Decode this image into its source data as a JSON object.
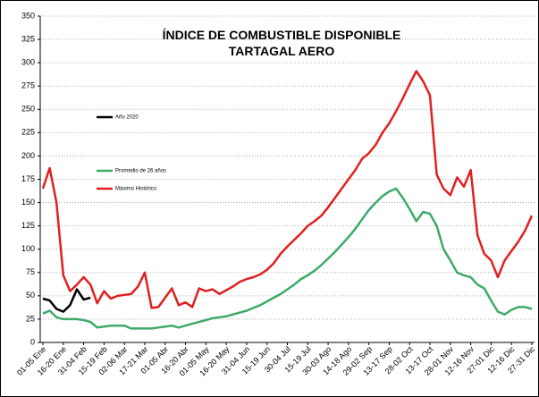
{
  "chart_data": {
    "type": "line",
    "title": "ÍNDICE DE COMBUSTIBLE DISPONIBLE",
    "subtitle": "TARTAGAL AERO",
    "categories": [
      "01-05 Ene",
      null,
      null,
      "16-20 Ene",
      null,
      null,
      "31-04 Feb",
      null,
      null,
      "15-19 Feb",
      null,
      null,
      "02-06 Mar",
      null,
      null,
      "17-21 Mar",
      null,
      null,
      "01-05 Abr",
      null,
      null,
      "16-20 Abr",
      null,
      null,
      "01-05 May",
      null,
      null,
      "16-20 May",
      null,
      null,
      "31-04 Jun",
      null,
      null,
      "15-19 Jun",
      null,
      null,
      "30-04 Jul",
      null,
      null,
      "15-19 Jul",
      null,
      null,
      "30-03 Ago",
      null,
      null,
      "14-18 Ago",
      null,
      null,
      "29-02 Sep",
      null,
      null,
      "13-17 Sep",
      null,
      null,
      "28-02 Oct",
      null,
      null,
      "13-17 Oct",
      null,
      null,
      "28-01 Nov",
      null,
      null,
      "12-16 Nov",
      null,
      null,
      "27-01 Dic",
      null,
      null,
      "12-16 Dic",
      null,
      null,
      "27-31 Dic"
    ],
    "series": [
      {
        "name": "Año 2020",
        "color": "#000000",
        "values": [
          47,
          45,
          36,
          33,
          40,
          57,
          46,
          48,
          null,
          null,
          null,
          null,
          null,
          null,
          null,
          null,
          null,
          null,
          null,
          null,
          null,
          null,
          null,
          null,
          null,
          null,
          null,
          null,
          null,
          null,
          null,
          null,
          null,
          null,
          null,
          null,
          null,
          null,
          null,
          null,
          null,
          null,
          null,
          null,
          null,
          null,
          null,
          null,
          null,
          null,
          null,
          null,
          null,
          null,
          null,
          null,
          null,
          null,
          null,
          null,
          null,
          null,
          null,
          null,
          null,
          null,
          null,
          null,
          null,
          null,
          null,
          null,
          null
        ]
      },
      {
        "name": "Promedio de 26 años",
        "color": "#3daa6a",
        "values": [
          31,
          34,
          27,
          25,
          25,
          25,
          24,
          22,
          16,
          17,
          18,
          18,
          18,
          15,
          15,
          15,
          15,
          16,
          17,
          18,
          16,
          18,
          20,
          22,
          24,
          26,
          27,
          28,
          30,
          32,
          34,
          37,
          40,
          44,
          48,
          52,
          57,
          62,
          68,
          72,
          77,
          83,
          90,
          97,
          105,
          113,
          122,
          132,
          142,
          150,
          157,
          162,
          165,
          155,
          143,
          130,
          140,
          138,
          125,
          100,
          88,
          75,
          72,
          70,
          62,
          58,
          45,
          33,
          30,
          35,
          38,
          38,
          36
        ]
      },
      {
        "name": "Máximo Histórico",
        "color": "#e02020",
        "values": [
          165,
          187,
          150,
          72,
          55,
          62,
          70,
          62,
          42,
          55,
          47,
          50,
          51,
          52,
          60,
          75,
          37,
          38,
          48,
          58,
          40,
          43,
          38,
          58,
          55,
          57,
          52,
          56,
          60,
          65,
          68,
          70,
          73,
          78,
          85,
          95,
          103,
          110,
          117,
          125,
          130,
          136,
          145,
          155,
          165,
          175,
          185,
          197,
          203,
          212,
          225,
          235,
          248,
          262,
          277,
          291,
          280,
          265,
          180,
          165,
          158,
          177,
          167,
          185,
          115,
          95,
          88,
          70,
          88,
          98,
          108,
          120,
          136
        ]
      }
    ],
    "ylim": [
      0,
      350
    ],
    "yticks": [
      0,
      25,
      50,
      75,
      100,
      125,
      150,
      175,
      200,
      225,
      250,
      275,
      300,
      325,
      350
    ],
    "grid": true
  }
}
